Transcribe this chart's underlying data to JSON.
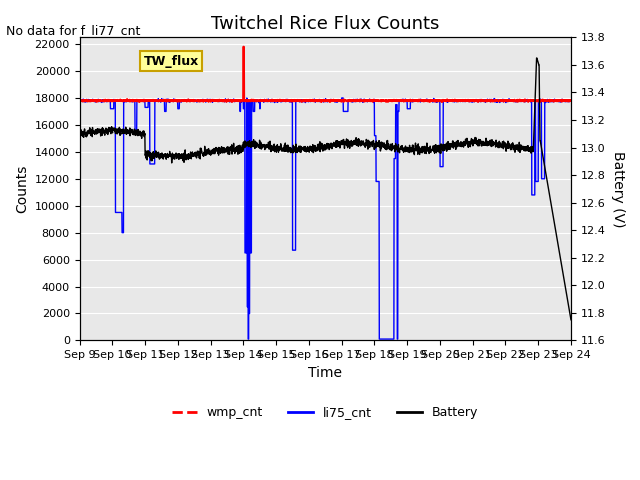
{
  "title": "Twitchel Rice Flux Counts",
  "no_data_text": "No data for f_li77_cnt",
  "xlabel": "Time",
  "ylabel_left": "Counts",
  "ylabel_right": "Battery (V)",
  "ylim_left": [
    0,
    22500
  ],
  "ylim_right": [
    11.6,
    13.8
  ],
  "yticks_left": [
    0,
    2000,
    4000,
    6000,
    8000,
    10000,
    12000,
    14000,
    16000,
    18000,
    20000,
    22000
  ],
  "yticks_right": [
    11.6,
    11.8,
    12.0,
    12.2,
    12.4,
    12.6,
    12.8,
    13.0,
    13.2,
    13.4,
    13.6,
    13.8
  ],
  "xtick_labels": [
    "Sep 9",
    "Sep 10",
    "Sep 11",
    "Sep 12",
    "Sep 13",
    "Sep 14",
    "Sep 15",
    "Sep 16",
    "Sep 17",
    "Sep 18",
    "Sep 19",
    "Sep 20",
    "Sep 21",
    "Sep 22",
    "Sep 23",
    "Sep 24"
  ],
  "wmp_color": "#ff0000",
  "li75_color": "#0000ff",
  "battery_color": "#000000",
  "wmp_lw": 1.5,
  "li75_lw": 1.0,
  "battery_lw": 1.0,
  "background_color": "#e8e8e8",
  "tw_flux_box_color": "#ffff99",
  "tw_flux_box_border": "#c8a000"
}
